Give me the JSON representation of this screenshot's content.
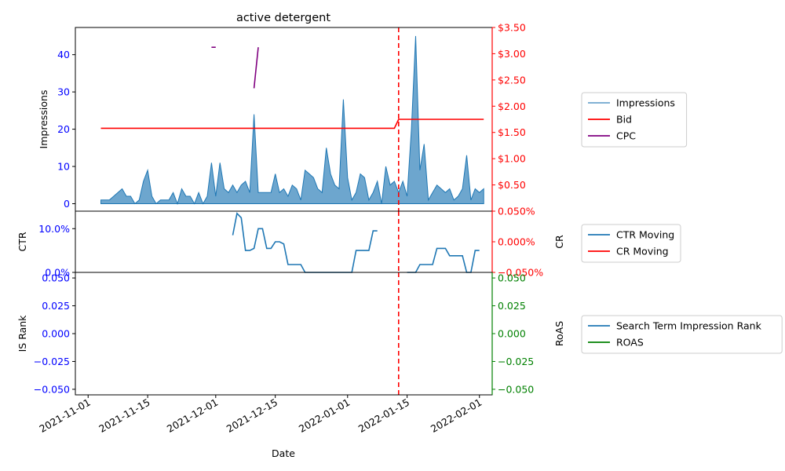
{
  "chart_data": {
    "type": "line",
    "title": "active detergent",
    "xlabel": "Date",
    "x_ticks": [
      "2021-11-01",
      "2021-11-15",
      "2021-12-01",
      "2021-12-15",
      "2022-01-01",
      "2022-01-15",
      "2022-02-01"
    ],
    "vline_date": "2022-01-13",
    "colors": {
      "impressions": "#1f77b4",
      "bid": "#ff0000",
      "cpc": "#800080",
      "ctr": "#1f77b4",
      "roas": "#008000",
      "vline": "#ff0000",
      "left_tick": "#0000ff",
      "right_tick_red": "#ff0000",
      "right_tick_green": "#008000"
    },
    "panels": [
      {
        "ylabel_left": "Impressions",
        "ylabel_right": "",
        "ylim_left": [
          -2,
          47.3
        ],
        "ylim_right": [
          0,
          3.5
        ],
        "left_ticks": [
          {
            "v": 0,
            "label": "0"
          },
          {
            "v": 10,
            "label": "10"
          },
          {
            "v": 20,
            "label": "20"
          },
          {
            "v": 30,
            "label": "30"
          },
          {
            "v": 40,
            "label": "40"
          }
        ],
        "right_ticks": [
          {
            "v": 0.5,
            "label": "$0.50"
          },
          {
            "v": 1.0,
            "label": "$1.00"
          },
          {
            "v": 1.5,
            "label": "$1.50"
          },
          {
            "v": 2.0,
            "label": "$2.00"
          },
          {
            "v": 2.5,
            "label": "$2.50"
          },
          {
            "v": 3.0,
            "label": "$3.00"
          },
          {
            "v": 3.5,
            "label": "$3.50"
          }
        ],
        "legend": [
          "Impressions",
          "Bid",
          "CPC"
        ],
        "series": [
          {
            "name": "Impressions",
            "axis": "left",
            "style": "area",
            "points": [
              [
                "2021-11-04",
                1
              ],
              [
                "2021-11-05",
                1
              ],
              [
                "2021-11-06",
                1
              ],
              [
                "2021-11-07",
                2
              ],
              [
                "2021-11-08",
                3
              ],
              [
                "2021-11-09",
                4
              ],
              [
                "2021-11-10",
                2
              ],
              [
                "2021-11-11",
                2
              ],
              [
                "2021-11-12",
                0
              ],
              [
                "2021-11-13",
                1
              ],
              [
                "2021-11-14",
                6
              ],
              [
                "2021-11-15",
                9
              ],
              [
                "2021-11-16",
                2
              ],
              [
                "2021-11-17",
                0
              ],
              [
                "2021-11-18",
                1
              ],
              [
                "2021-11-19",
                1
              ],
              [
                "2021-11-20",
                1
              ],
              [
                "2021-11-21",
                3
              ],
              [
                "2021-11-22",
                0
              ],
              [
                "2021-11-23",
                4
              ],
              [
                "2021-11-24",
                2
              ],
              [
                "2021-11-25",
                2
              ],
              [
                "2021-11-26",
                0
              ],
              [
                "2021-11-27",
                3
              ],
              [
                "2021-11-28",
                0
              ],
              [
                "2021-11-29",
                2
              ],
              [
                "2021-11-30",
                11
              ],
              [
                "2021-12-01",
                2
              ],
              [
                "2021-12-02",
                11
              ],
              [
                "2021-12-03",
                4
              ],
              [
                "2021-12-04",
                3
              ],
              [
                "2021-12-05",
                5
              ],
              [
                "2021-12-06",
                3
              ],
              [
                "2021-12-07",
                5
              ],
              [
                "2021-12-08",
                6
              ],
              [
                "2021-12-09",
                3
              ],
              [
                "2021-12-10",
                24
              ],
              [
                "2021-12-11",
                3
              ],
              [
                "2021-12-12",
                3
              ],
              [
                "2021-12-13",
                3
              ],
              [
                "2021-12-14",
                3
              ],
              [
                "2021-12-15",
                8
              ],
              [
                "2021-12-16",
                3
              ],
              [
                "2021-12-17",
                4
              ],
              [
                "2021-12-18",
                2
              ],
              [
                "2021-12-19",
                5
              ],
              [
                "2021-12-20",
                4
              ],
              [
                "2021-12-21",
                1
              ],
              [
                "2021-12-22",
                9
              ],
              [
                "2021-12-23",
                8
              ],
              [
                "2021-12-24",
                7
              ],
              [
                "2021-12-25",
                4
              ],
              [
                "2021-12-26",
                3
              ],
              [
                "2021-12-27",
                15
              ],
              [
                "2021-12-28",
                8
              ],
              [
                "2021-12-29",
                5
              ],
              [
                "2021-12-30",
                4
              ],
              [
                "2021-12-31",
                28
              ],
              [
                "2022-01-01",
                7
              ],
              [
                "2022-01-02",
                1
              ],
              [
                "2022-01-03",
                3
              ],
              [
                "2022-01-04",
                8
              ],
              [
                "2022-01-05",
                7
              ],
              [
                "2022-01-06",
                1
              ],
              [
                "2022-01-07",
                3
              ],
              [
                "2022-01-08",
                6
              ],
              [
                "2022-01-09",
                0
              ],
              [
                "2022-01-10",
                10
              ],
              [
                "2022-01-11",
                5
              ],
              [
                "2022-01-12",
                6
              ],
              [
                "2022-01-13",
                3
              ],
              [
                "2022-01-14",
                6
              ],
              [
                "2022-01-15",
                2
              ],
              [
                "2022-01-16",
                20
              ],
              [
                "2022-01-17",
                45
              ],
              [
                "2022-01-18",
                9
              ],
              [
                "2022-01-19",
                16
              ],
              [
                "2022-01-20",
                1
              ],
              [
                "2022-01-21",
                3
              ],
              [
                "2022-01-22",
                5
              ],
              [
                "2022-01-23",
                4
              ],
              [
                "2022-01-24",
                3
              ],
              [
                "2022-01-25",
                4
              ],
              [
                "2022-01-26",
                1
              ],
              [
                "2022-01-27",
                2
              ],
              [
                "2022-01-28",
                4
              ],
              [
                "2022-01-29",
                13
              ],
              [
                "2022-01-30",
                1
              ],
              [
                "2022-01-31",
                4
              ],
              [
                "2022-02-01",
                3
              ],
              [
                "2022-02-02",
                4
              ]
            ]
          },
          {
            "name": "Bid",
            "axis": "right",
            "style": "line",
            "points": [
              [
                "2021-11-04",
                1.58
              ],
              [
                "2022-01-12",
                1.58
              ],
              [
                "2022-01-13",
                1.75
              ],
              [
                "2022-02-02",
                1.75
              ]
            ]
          },
          {
            "name": "CPC",
            "axis": "left",
            "style": "line",
            "segments": [
              [
                [
                  "2021-11-30",
                  42
                ],
                [
                  "2021-12-01",
                  42
                ]
              ],
              [
                [
                  "2021-12-10",
                  31
                ],
                [
                  "2021-12-11",
                  42
                ]
              ]
            ]
          }
        ]
      },
      {
        "ylabel_left": "CTR",
        "ylabel_right": "CR",
        "ylim_left": [
          0,
          0.14
        ],
        "ylim_right": [
          -0.05,
          0.05
        ],
        "left_ticks": [
          {
            "v": 0,
            "label": "0.0%"
          },
          {
            "v": 0.1,
            "label": "10.0%"
          }
        ],
        "right_ticks": [
          {
            "v": -0.05,
            "label": "−0.050%"
          },
          {
            "v": 0,
            "label": "0.000%"
          },
          {
            "v": 0.05,
            "label": "0.050%"
          }
        ],
        "legend": [
          "CTR Moving",
          "CR Moving"
        ],
        "series": [
          {
            "name": "CTR Moving",
            "axis": "left",
            "style": "line",
            "segments": [
              [
                [
                  "2021-12-05",
                  0.085
                ],
                [
                  "2021-12-06",
                  0.135
                ],
                [
                  "2021-12-07",
                  0.125
                ],
                [
                  "2021-12-08",
                  0.05
                ],
                [
                  "2021-12-09",
                  0.05
                ],
                [
                  "2021-12-10",
                  0.055
                ],
                [
                  "2021-12-11",
                  0.1
                ],
                [
                  "2021-12-12",
                  0.1
                ],
                [
                  "2021-12-13",
                  0.055
                ],
                [
                  "2021-12-14",
                  0.055
                ],
                [
                  "2021-12-15",
                  0.07
                ],
                [
                  "2021-12-16",
                  0.07
                ],
                [
                  "2021-12-17",
                  0.065
                ],
                [
                  "2021-12-18",
                  0.018
                ],
                [
                  "2021-12-19",
                  0.018
                ],
                [
                  "2021-12-20",
                  0.018
                ],
                [
                  "2021-12-21",
                  0.018
                ],
                [
                  "2021-12-22",
                  0
                ],
                [
                  "2021-12-23",
                  0
                ],
                [
                  "2021-12-24",
                  0
                ],
                [
                  "2021-12-25",
                  0
                ],
                [
                  "2021-12-26",
                  0
                ],
                [
                  "2021-12-27",
                  0
                ],
                [
                  "2021-12-28",
                  0
                ],
                [
                  "2021-12-29",
                  0
                ],
                [
                  "2021-12-30",
                  0
                ],
                [
                  "2021-12-31",
                  0
                ],
                [
                  "2022-01-01",
                  0
                ],
                [
                  "2022-01-02",
                  0
                ],
                [
                  "2022-01-03",
                  0.05
                ],
                [
                  "2022-01-04",
                  0.05
                ],
                [
                  "2022-01-05",
                  0.05
                ],
                [
                  "2022-01-06",
                  0.05
                ],
                [
                  "2022-01-07",
                  0.095
                ],
                [
                  "2022-01-08",
                  0.095
                ]
              ],
              [
                [
                  "2022-01-15",
                  0
                ],
                [
                  "2022-01-16",
                  0
                ],
                [
                  "2022-01-17",
                  0
                ],
                [
                  "2022-01-18",
                  0.018
                ],
                [
                  "2022-01-19",
                  0.018
                ],
                [
                  "2022-01-20",
                  0.018
                ],
                [
                  "2022-01-21",
                  0.018
                ],
                [
                  "2022-01-22",
                  0.055
                ],
                [
                  "2022-01-23",
                  0.055
                ],
                [
                  "2022-01-24",
                  0.055
                ],
                [
                  "2022-01-25",
                  0.038
                ],
                [
                  "2022-01-26",
                  0.038
                ],
                [
                  "2022-01-27",
                  0.038
                ],
                [
                  "2022-01-28",
                  0.038
                ],
                [
                  "2022-01-29",
                  0
                ],
                [
                  "2022-01-30",
                  0
                ],
                [
                  "2022-01-31",
                  0.05
                ],
                [
                  "2022-02-01",
                  0.05
                ]
              ]
            ]
          }
        ]
      },
      {
        "ylabel_left": "IS Rank",
        "ylabel_right": "RoAS",
        "ylim_left": [
          -0.055,
          0.055
        ],
        "ylim_right": [
          -0.055,
          0.055
        ],
        "left_ticks": [
          {
            "v": -0.05,
            "label": "−0.050"
          },
          {
            "v": -0.025,
            "label": "−0.025"
          },
          {
            "v": 0,
            "label": "0.000"
          },
          {
            "v": 0.025,
            "label": "0.025"
          },
          {
            "v": 0.05,
            "label": "0.050"
          }
        ],
        "right_ticks": [
          {
            "v": -0.05,
            "label": "−0.050"
          },
          {
            "v": -0.025,
            "label": "−0.025"
          },
          {
            "v": 0,
            "label": "0.000"
          },
          {
            "v": 0.025,
            "label": "0.025"
          },
          {
            "v": 0.05,
            "label": "0.050"
          }
        ],
        "legend": [
          "Search Term Impression Rank",
          "ROAS"
        ],
        "series": []
      }
    ]
  }
}
